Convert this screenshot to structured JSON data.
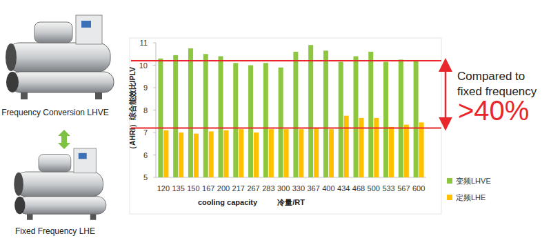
{
  "chart_data": {
    "type": "bar",
    "y_label": "（AHRI）综合能效比IPLV",
    "x_label": "cooling capacity",
    "x_label_cn": "冷量/RT",
    "categories": [
      "120",
      "135",
      "150",
      "167",
      "200",
      "217",
      "267",
      "283",
      "300",
      "330",
      "367",
      "400",
      "434",
      "468",
      "500",
      "533",
      "567",
      "600"
    ],
    "series": [
      {
        "name": "变频LHVE",
        "color": "#8dc63f",
        "values": [
          10.3,
          10.45,
          10.75,
          10.5,
          10.4,
          10.1,
          10.0,
          10.1,
          9.9,
          10.6,
          10.9,
          10.65,
          10.15,
          10.4,
          10.6,
          10.15,
          10.25,
          10.2
        ]
      },
      {
        "name": "定频LHE",
        "color": "#ffc000",
        "values": [
          7.1,
          7.0,
          6.95,
          7.05,
          7.1,
          7.15,
          7.0,
          7.15,
          7.15,
          7.15,
          7.2,
          7.15,
          7.75,
          7.65,
          7.65,
          7.25,
          7.35,
          7.45
        ]
      }
    ],
    "ylim": [
      5,
      11
    ],
    "yticks": [
      5,
      6,
      7,
      8,
      9,
      10,
      11
    ],
    "grid": false,
    "legend": "right",
    "reference_lines": [
      10.2,
      7.2
    ],
    "annotation_lines": [
      "Compared to",
      "fixed frequency"
    ],
    "highlight": ">40%",
    "product_labels": [
      "Frequency Conversion LHVE",
      "Fixed Frequency LHE"
    ]
  }
}
